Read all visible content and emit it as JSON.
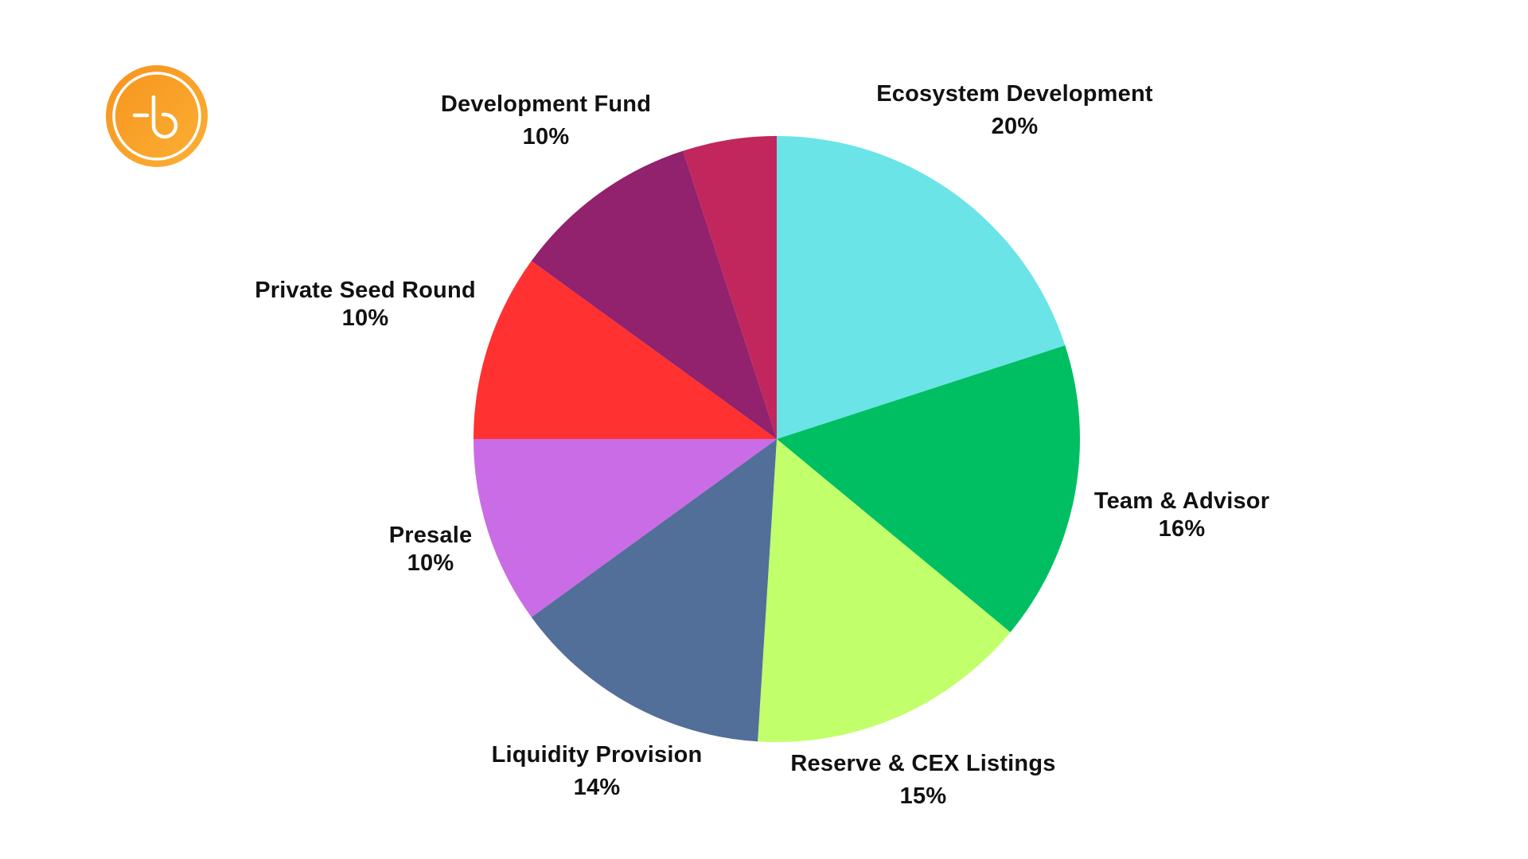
{
  "logo": {
    "icon": "b-coin-logo-icon",
    "color_start": "#F7931E",
    "color_end": "#FBB034"
  },
  "chart_data": {
    "type": "pie",
    "title": "",
    "start_angle_deg": 0,
    "direction": "clockwise",
    "center": [
      976,
      552
    ],
    "radius": 381,
    "slices": [
      {
        "label": "Ecosystem Development",
        "value": 20,
        "display": "20%",
        "color": "#6BE4E8",
        "labeled": true
      },
      {
        "label": "Team & Advisor",
        "value": 16,
        "display": "16%",
        "color": "#00BF63",
        "labeled": true
      },
      {
        "label": "Reserve & CEX Listings",
        "value": 15,
        "display": "15%",
        "color": "#C1FF6B",
        "labeled": true
      },
      {
        "label": "Liquidity Provision",
        "value": 14,
        "display": "14%",
        "color": "#526F99",
        "labeled": true
      },
      {
        "label": "Presale",
        "value": 10,
        "display": "10%",
        "color": "#CA6CE6",
        "labeled": true
      },
      {
        "label": "Private Seed Round",
        "value": 10,
        "display": "10%",
        "color": "#FF3131",
        "labeled": true
      },
      {
        "label": "Development Fund",
        "value": 10,
        "display": "10%",
        "color": "#92216E",
        "labeled": true
      },
      {
        "label": "",
        "value": 5,
        "display": "",
        "color": "#C1275D",
        "labeled": false
      }
    ],
    "legend": "none"
  },
  "labels": {
    "ecosystem": {
      "name": "Ecosystem Development",
      "pct": "20%"
    },
    "team": {
      "name": "Team & Advisor",
      "pct": "16%"
    },
    "reserve": {
      "name": "Reserve & CEX Listings",
      "pct": "15%"
    },
    "liquidity": {
      "name": "Liquidity Provision",
      "pct": "14%"
    },
    "presale": {
      "name": "Presale",
      "pct": "10%"
    },
    "private_seed": {
      "name": "Private Seed Round",
      "pct": "10%"
    },
    "dev_fund": {
      "name": "Development Fund",
      "pct": "10%"
    }
  }
}
